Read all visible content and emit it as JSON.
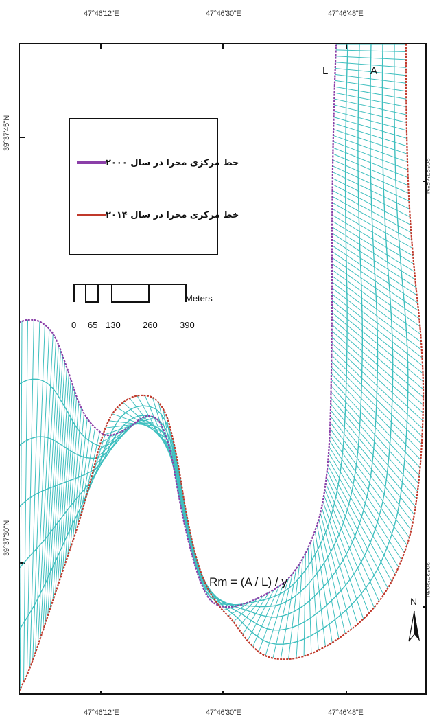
{
  "coordinates": {
    "top": [
      "47°46'12\"E",
      "47°46'30\"E",
      "47°46'48\"E"
    ],
    "bottom": [
      "47°46'12\"E",
      "47°46'30\"E",
      "47°46'48\"E"
    ],
    "left": [
      "39°37'45\"N",
      "39°37'30\"N"
    ],
    "right": [
      "39°37'45\"N",
      "39°37'30\"N"
    ]
  },
  "legend": {
    "items": [
      {
        "label": "خط مرکزی مجرا در سال ۲۰۰۰",
        "color": "#8b3fa8"
      },
      {
        "label": "خط مرکزی مجرا در سال ۲۰۱۴",
        "color": "#c0392b"
      }
    ]
  },
  "scale_bar": {
    "ticks": [
      "0",
      "65",
      "130",
      "260",
      "390"
    ],
    "unit": "Meters"
  },
  "labels": {
    "L": "L",
    "A": "A"
  },
  "formula": "Rm = (A / L) / y",
  "north_arrow": {
    "label": "N"
  },
  "colors": {
    "transect": "#3fbfbf",
    "centerline_2000": "#8b3fa8",
    "centerline_2014": "#c0392b"
  }
}
